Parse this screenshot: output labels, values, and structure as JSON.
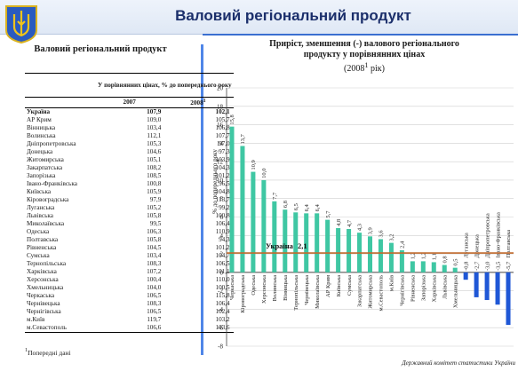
{
  "page": {
    "title": "Валовий регіональний продукт",
    "source": "Державний комітет статистики України"
  },
  "table": {
    "title": "Валовий регіональний продукт",
    "header_main": "У порівнянних цінах, % до попереднього року",
    "col_2007": "2007",
    "col_2008": "2008",
    "col_2008_sup": "1",
    "rows": [
      {
        "region": "Україна",
        "y2007": "107,9",
        "y2008": "102,1"
      },
      {
        "region": "АР Крим",
        "y2007": "109,0",
        "y2008": "105,7"
      },
      {
        "region": "Вінницька",
        "y2007": "103,4",
        "y2008": "106,8"
      },
      {
        "region": "Волинська",
        "y2007": "112,1",
        "y2008": "107,7"
      },
      {
        "region": "Дніпропетровська",
        "y2007": "105,3",
        "y2008": "97,0"
      },
      {
        "region": "Донецька",
        "y2007": "104,6",
        "y2008": "97,3"
      },
      {
        "region": "Житомирська",
        "y2007": "105,1",
        "y2008": "103,9"
      },
      {
        "region": "Закарпатська",
        "y2007": "108,2",
        "y2008": "104,3"
      },
      {
        "region": "Запорізька",
        "y2007": "108,5",
        "y2008": "101,2"
      },
      {
        "region": "Івано-Франківська",
        "y2007": "100,8",
        "y2008": "96,5"
      },
      {
        "region": "Київська",
        "y2007": "105,9",
        "y2008": "104,8"
      },
      {
        "region": "Кіровоградська",
        "y2007": "97,9",
        "y2008": "113,7"
      },
      {
        "region": "Луганська",
        "y2007": "105,2",
        "y2008": "99,2"
      },
      {
        "region": "Львівська",
        "y2007": "105,8",
        "y2008": "100,8"
      },
      {
        "region": "Миколаївська",
        "y2007": "99,5",
        "y2008": "106,4"
      },
      {
        "region": "Одеська",
        "y2007": "106,3",
        "y2008": "110,9"
      },
      {
        "region": "Полтавська",
        "y2007": "105,8",
        "y2008": "94,3"
      },
      {
        "region": "Рівненська",
        "y2007": "104,5",
        "y2008": "101,2"
      },
      {
        "region": "Сумська",
        "y2007": "103,4",
        "y2008": "104,7"
      },
      {
        "region": "Тернопільська",
        "y2007": "108,3",
        "y2008": "106,5"
      },
      {
        "region": "Харківська",
        "y2007": "107,2",
        "y2008": "101,1"
      },
      {
        "region": "Херсонська",
        "y2007": "100,4",
        "y2008": "110,0"
      },
      {
        "region": "Хмельницька",
        "y2007": "104,0",
        "y2008": "100,5"
      },
      {
        "region": "Черкаська",
        "y2007": "106,5",
        "y2008": "115,8"
      },
      {
        "region": "Чернівецька",
        "y2007": "108,3",
        "y2008": "106,4"
      },
      {
        "region": "Чернігівська",
        "y2007": "106,5",
        "y2008": "102,4"
      },
      {
        "region": "м.Київ",
        "y2007": "119,7",
        "y2008": "103,2"
      },
      {
        "region": "м.Севастополь",
        "y2007": "106,6",
        "y2008": "103,6"
      }
    ],
    "footnote_sup": "1",
    "footnote": "Попередні дані"
  },
  "chart_data": {
    "type": "bar",
    "title_line1": "Приріст, зменшення (-) валового регіонального",
    "title_line2": "продукту у порівнянних цінах",
    "subtitle_prefix": "(2008",
    "subtitle_sup": "1",
    "subtitle_suffix": " рік)",
    "ylabel": "% до попереднього року",
    "ylim": [
      -8,
      20
    ],
    "yticks": [
      -8,
      -6,
      -4,
      -2,
      0,
      2,
      4,
      6,
      8,
      10,
      12,
      14,
      16,
      18,
      20
    ],
    "grid": true,
    "categories": [
      "Черкаська",
      "Кіровоградська",
      "Одеська",
      "Херсонська",
      "Волинська",
      "Вінницька",
      "Тернопільська",
      "Чернівецька",
      "Миколаївська",
      "АР Крим",
      "Київська",
      "Сумська",
      "Закарпатська",
      "Житомирська",
      "м.Севастополь",
      "м.Київ",
      "Чернігівська",
      "Рівненська",
      "Запорізька",
      "Харківська",
      "Львівська",
      "Хмельницька",
      "Луганська",
      "Донецька",
      "Дніпропетровська",
      "Івано-Франківська",
      "Полтавська"
    ],
    "values": [
      15.8,
      13.7,
      10.9,
      10.0,
      7.7,
      6.8,
      6.5,
      6.4,
      6.4,
      5.7,
      4.8,
      4.7,
      4.3,
      3.9,
      3.6,
      3.2,
      2.4,
      1.2,
      1.2,
      1.1,
      0.8,
      0.5,
      -0.8,
      -2.7,
      -3.0,
      -3.5,
      -5.7
    ],
    "data_labels": [
      "15,8",
      "13,7",
      "10,9",
      "10,0",
      "7,7",
      "6,8",
      "6,5",
      "6,4",
      "6,4",
      "5,7",
      "4,8",
      "4,7",
      "4,3",
      "3,9",
      "3,6",
      "3,2",
      "2,4",
      "1,2",
      "1,2",
      "1,1",
      "0,8",
      "0,5",
      "-0,8",
      "-2,7",
      "-3,0",
      "-3,5",
      "-5,7"
    ],
    "reference_line": {
      "label": "Україна",
      "value": 2.1,
      "value_label": "2,1",
      "color": "#c0692c"
    },
    "colors": {
      "positive": "#3fc7a3",
      "negative": "#1f57d6"
    }
  }
}
